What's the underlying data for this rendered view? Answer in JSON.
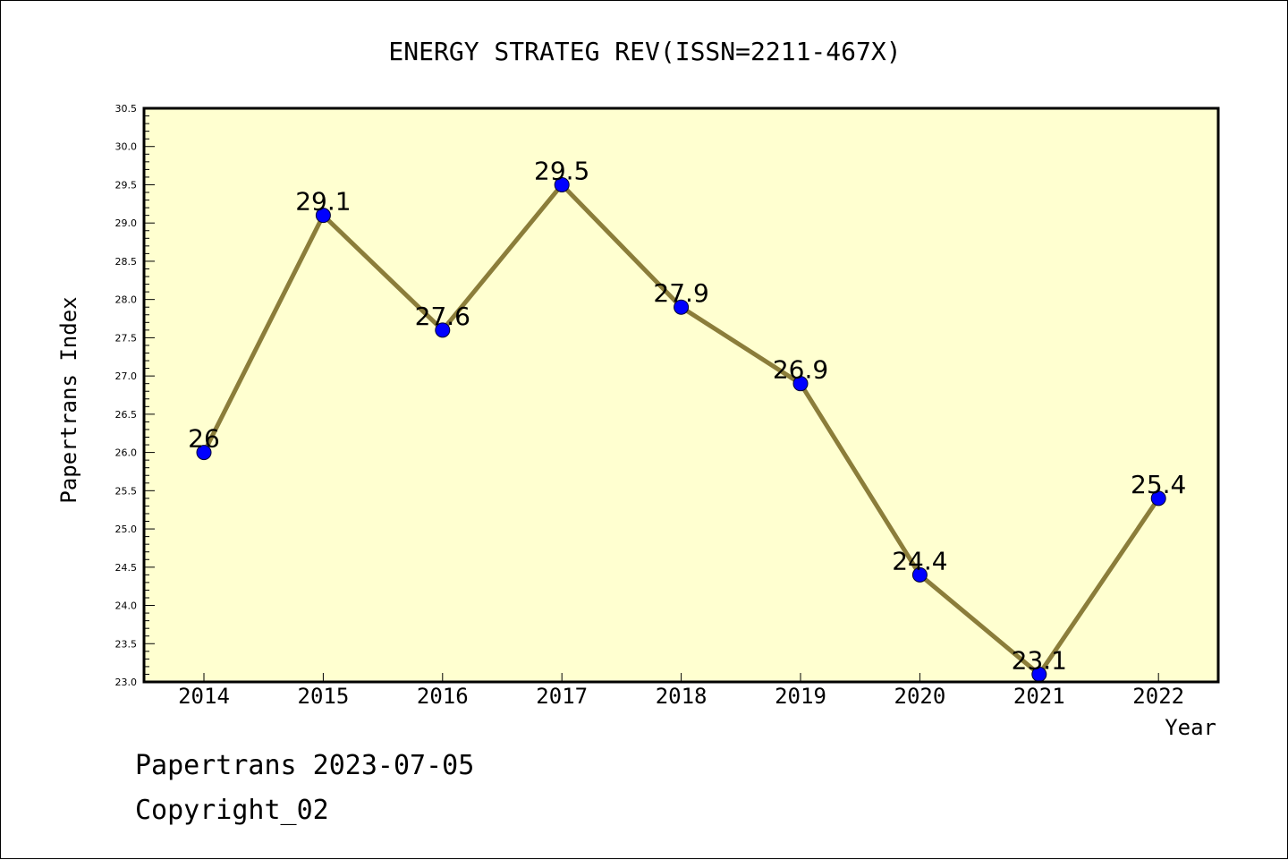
{
  "chart_data": {
    "type": "line",
    "title": "ENERGY STRATEG REV(ISSN=2211-467X)",
    "xlabel": "Year",
    "ylabel": "Papertrans Index",
    "categories": [
      "2014",
      "2015",
      "2016",
      "2017",
      "2018",
      "2019",
      "2020",
      "2021",
      "2022"
    ],
    "series": [
      {
        "values": [
          26,
          29.1,
          27.6,
          29.5,
          27.9,
          26.9,
          24.4,
          23.1,
          25.4
        ]
      }
    ],
    "data_labels": [
      "26",
      "29.1",
      "27.6",
      "29.5",
      "27.9",
      "26.9",
      "24.4",
      "23.1",
      "25.4"
    ],
    "ylim": [
      23.0,
      30.5
    ],
    "y_ticks": [
      "23.0",
      "23.5",
      "24.0",
      "24.5",
      "25.0",
      "25.5",
      "26.0",
      "26.5",
      "27.0",
      "27.5",
      "28.0",
      "28.5",
      "29.0",
      "29.5",
      "30.0",
      "30.5"
    ],
    "grid": false,
    "colors": {
      "plot_background": "#ffffd0",
      "line": "#8b7d3a",
      "marker": "#0000ff",
      "axis": "#000000"
    }
  },
  "footer": {
    "line1": "Papertrans 2023-07-05",
    "line2": "Copyright_02"
  }
}
